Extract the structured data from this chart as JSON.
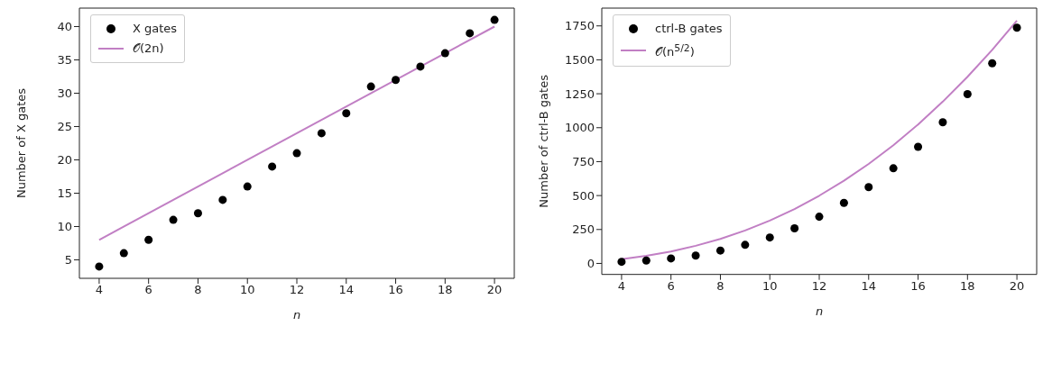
{
  "chart_data": [
    {
      "type": "scatter",
      "xlabel": "n",
      "ylabel": "Number of X gates",
      "xlim": [
        3.2,
        20.8
      ],
      "xticks": [
        4,
        6,
        8,
        10,
        12,
        14,
        16,
        18,
        20
      ],
      "ylim": [
        2.23,
        42.77
      ],
      "yticks": [
        5,
        10,
        15,
        20,
        25,
        30,
        35,
        40
      ],
      "grid": false,
      "legend": "top left",
      "series": [
        {
          "name": "X gates",
          "marker": "circle",
          "color": "#000000",
          "x": [
            4,
            5,
            6,
            7,
            8,
            9,
            10,
            11,
            12,
            13,
            14,
            15,
            16,
            17,
            18,
            19,
            20
          ],
          "values": [
            4,
            6,
            8,
            11,
            12,
            14,
            16,
            19,
            21,
            24,
            27,
            31,
            32,
            34,
            36,
            39,
            41
          ]
        },
        {
          "name": "𝒪(2n)",
          "type": "line",
          "marker": "none",
          "color": "#c17fc4",
          "x": [
            4,
            20
          ],
          "values": [
            8,
            40
          ]
        }
      ]
    },
    {
      "type": "scatter",
      "xlabel": "n",
      "ylabel": "Number of ctrl-B gates",
      "xlim": [
        3.2,
        20.8
      ],
      "xticks": [
        4,
        6,
        8,
        10,
        12,
        14,
        16,
        18,
        20
      ],
      "ylim": [
        -81,
        1881
      ],
      "yticks": [
        0,
        250,
        500,
        750,
        1000,
        1250,
        1500,
        1750
      ],
      "grid": false,
      "legend": "top left",
      "series": [
        {
          "name": "ctrl-B gates",
          "marker": "circle",
          "color": "#000000",
          "x": [
            4,
            5,
            6,
            7,
            8,
            9,
            10,
            11,
            12,
            13,
            14,
            15,
            16,
            17,
            18,
            19,
            20
          ],
          "values": [
            12,
            21,
            37,
            58,
            95,
            137,
            191,
            259,
            344,
            446,
            562,
            701,
            859,
            1040,
            1247,
            1475,
            1737
          ]
        },
        {
          "name": "𝒪(n$^{5/2}$)",
          "type": "line",
          "marker": "none",
          "color": "#c17fc4",
          "x": [
            4,
            5,
            6,
            7,
            8,
            9,
            10,
            11,
            12,
            13,
            14,
            15,
            16,
            17,
            18,
            19,
            20
          ],
          "values": [
            32,
            56,
            88,
            130,
            181,
            243,
            316,
            401,
            499,
            609,
            733,
            871,
            1024,
            1192,
            1375,
            1573,
            1789
          ]
        }
      ]
    }
  ]
}
